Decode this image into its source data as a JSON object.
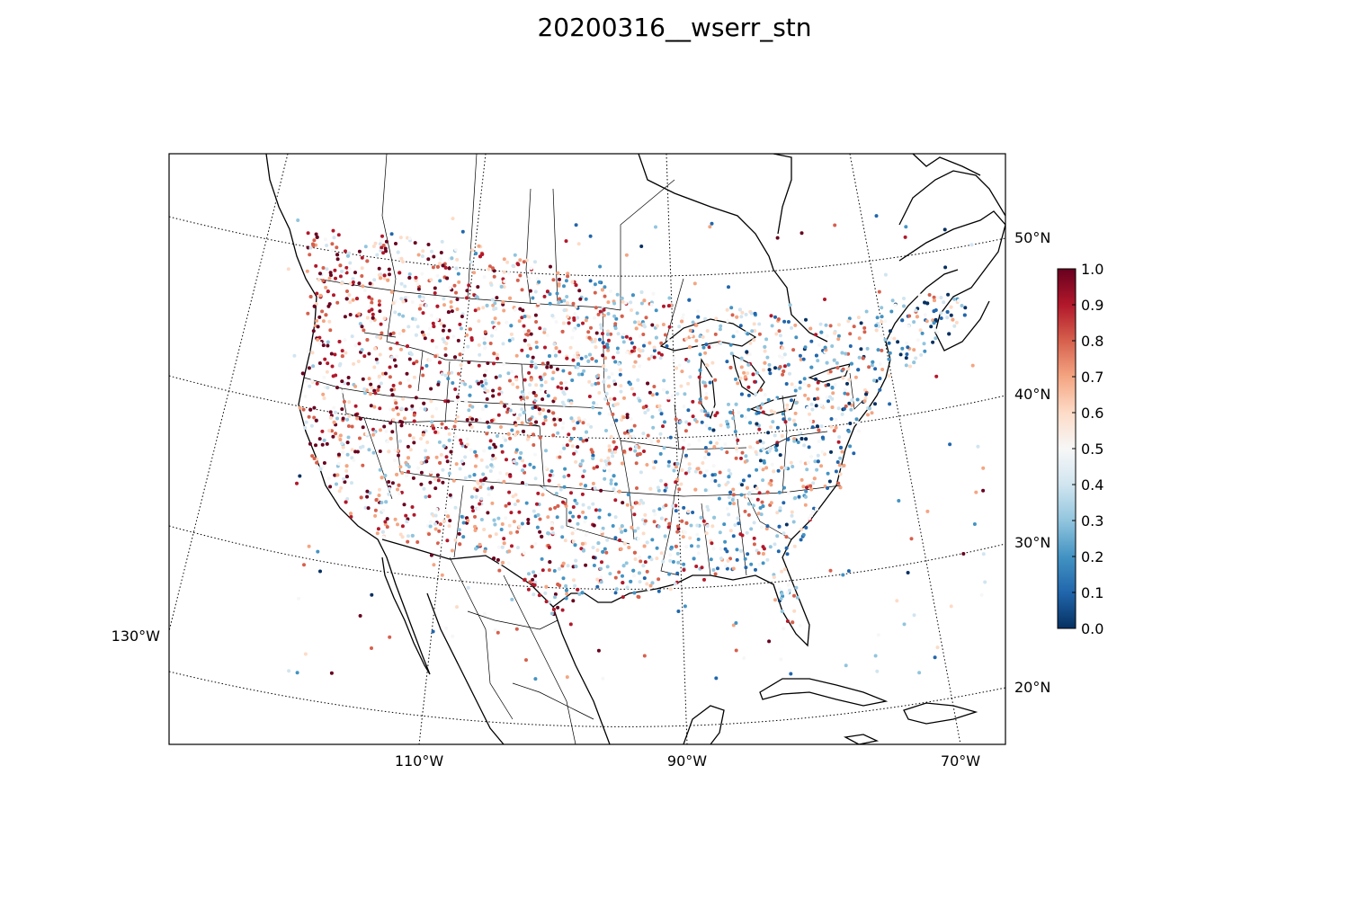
{
  "title": "20200316__wserr_stn",
  "chart_data": {
    "type": "scatter",
    "projection": "lambert-conformal",
    "extent": {
      "lon": [
        -130,
        -67
      ],
      "lat": [
        20,
        52
      ]
    },
    "lat_labels": [
      "50°N",
      "40°N",
      "30°N",
      "20°N"
    ],
    "lon_labels": [
      "130°W",
      "110°W",
      "90°W",
      "70°W"
    ],
    "colorbar": {
      "colormap": "RdBu_r",
      "range": [
        0.0,
        1.0
      ],
      "ticks": [
        "1.0",
        "0.9",
        "0.8",
        "0.7",
        "0.6",
        "0.5",
        "0.4",
        "0.3",
        "0.2",
        "0.1",
        "0.0"
      ],
      "colors": [
        "#053061",
        "#2166ac",
        "#4393c3",
        "#92c5de",
        "#d1e5f0",
        "#f7f7f7",
        "#fddbc7",
        "#f4a582",
        "#d6604d",
        "#b2182b",
        "#67001f"
      ]
    },
    "series_description": "station-level values colored by colormap",
    "grid": "dotted graticule"
  }
}
